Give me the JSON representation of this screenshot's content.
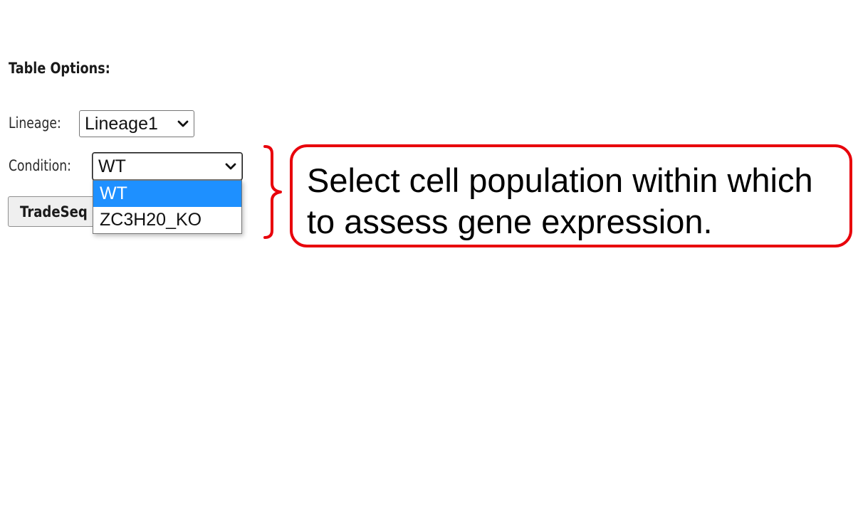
{
  "table_options": {
    "title": "Table Options:",
    "lineage": {
      "label": "Lineage:",
      "selected": "Lineage1"
    },
    "condition": {
      "label": "Condition:",
      "selected": "WT",
      "options": [
        "WT",
        "ZC3H20_KO"
      ],
      "highlighted_option": "WT"
    },
    "run_button_label": "TradeSeq"
  },
  "callout": {
    "line1": "Select cell population within which",
    "line2": "to assess gene expression."
  },
  "colors": {
    "accent_highlight": "#1e90ff",
    "callout_border": "#e8000b"
  },
  "icons": {
    "select_arrow": "chevron-down-icon",
    "brace": "curly-brace-icon"
  }
}
